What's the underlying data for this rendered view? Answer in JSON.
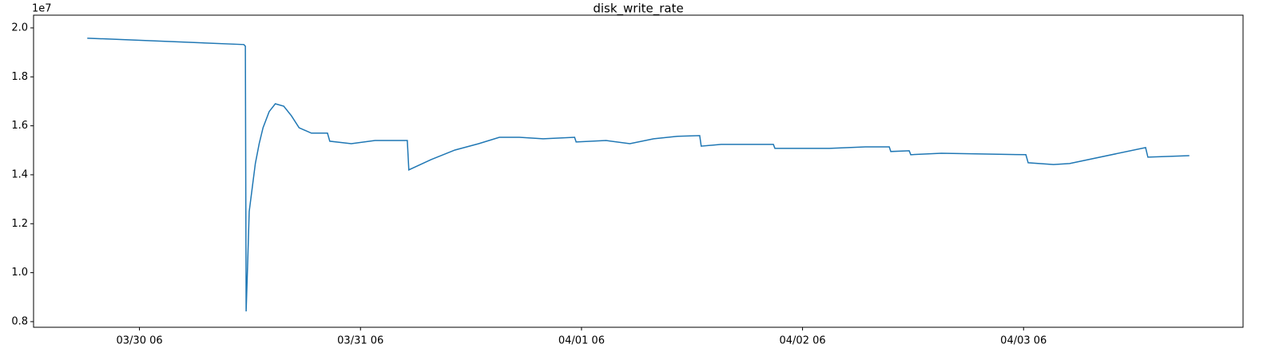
{
  "chart_data": {
    "type": "line",
    "title": "disk_write_rate",
    "y_offset_label": "1e7",
    "x": [
      "03/30 00:20",
      "03/30 17:20",
      "03/30 17:30",
      "03/30 17:35",
      "03/30 17:45",
      "03/30 17:55",
      "03/30 18:15",
      "03/30 18:35",
      "03/30 19:00",
      "03/30 19:25",
      "03/30 20:05",
      "03/30 20:45",
      "03/30 21:40",
      "03/30 22:30",
      "03/30 23:20",
      "03/31 00:40",
      "03/31 02:25",
      "03/31 02:40",
      "03/31 05:00",
      "03/31 07:35",
      "03/31 11:05",
      "03/31 11:15",
      "03/31 13:40",
      "03/31 16:15",
      "03/31 18:50",
      "03/31 21:05",
      "03/31 23:15",
      "04/01 01:50",
      "04/01 05:15",
      "04/01 05:25",
      "04/01 08:40",
      "04/01 11:15",
      "04/01 13:50",
      "04/01 16:25",
      "04/01 18:50",
      "04/01 19:00",
      "04/01 21:10",
      "04/02 02:50",
      "04/02 03:00",
      "04/02 08:55",
      "04/02 12:50",
      "04/02 15:25",
      "04/02 15:35",
      "04/02 17:35",
      "04/02 17:45",
      "04/02 21:05",
      "04/03 01:25",
      "04/03 06:15",
      "04/03 06:30",
      "04/03 09:15",
      "04/03 11:00",
      "04/03 19:15",
      "04/03 19:30",
      "04/04 00:00"
    ],
    "series": [
      {
        "name": "disk_write_rate",
        "color": "#1f77b4",
        "values": [
          1.958,
          1.932,
          1.925,
          0.842,
          1.038,
          1.25,
          1.348,
          1.446,
          1.527,
          1.592,
          1.658,
          1.69,
          1.68,
          1.641,
          1.592,
          1.57,
          1.57,
          1.537,
          1.527,
          1.54,
          1.54,
          1.42,
          1.462,
          1.501,
          1.527,
          1.553,
          1.553,
          1.547,
          1.553,
          1.534,
          1.54,
          1.527,
          1.547,
          1.557,
          1.56,
          1.517,
          1.524,
          1.524,
          1.508,
          1.508,
          1.514,
          1.514,
          1.495,
          1.498,
          1.482,
          1.488,
          1.485,
          1.482,
          1.449,
          1.442,
          1.446,
          1.511,
          1.472,
          1.478
        ]
      }
    ],
    "xlim": [
      "03/29 18:30",
      "04/04 05:50"
    ],
    "xticks": [
      "03/30 06",
      "03/31 06",
      "04/01 06",
      "04/02 06",
      "04/03 06"
    ],
    "ylim": [
      0.777,
      2.052
    ],
    "yticks": [
      0.8,
      {
        "value": 1.0,
        "label": "1.0"
      },
      1.2,
      1.4,
      1.6,
      1.8,
      {
        "value": 2.0,
        "label": "2.0"
      }
    ]
  }
}
